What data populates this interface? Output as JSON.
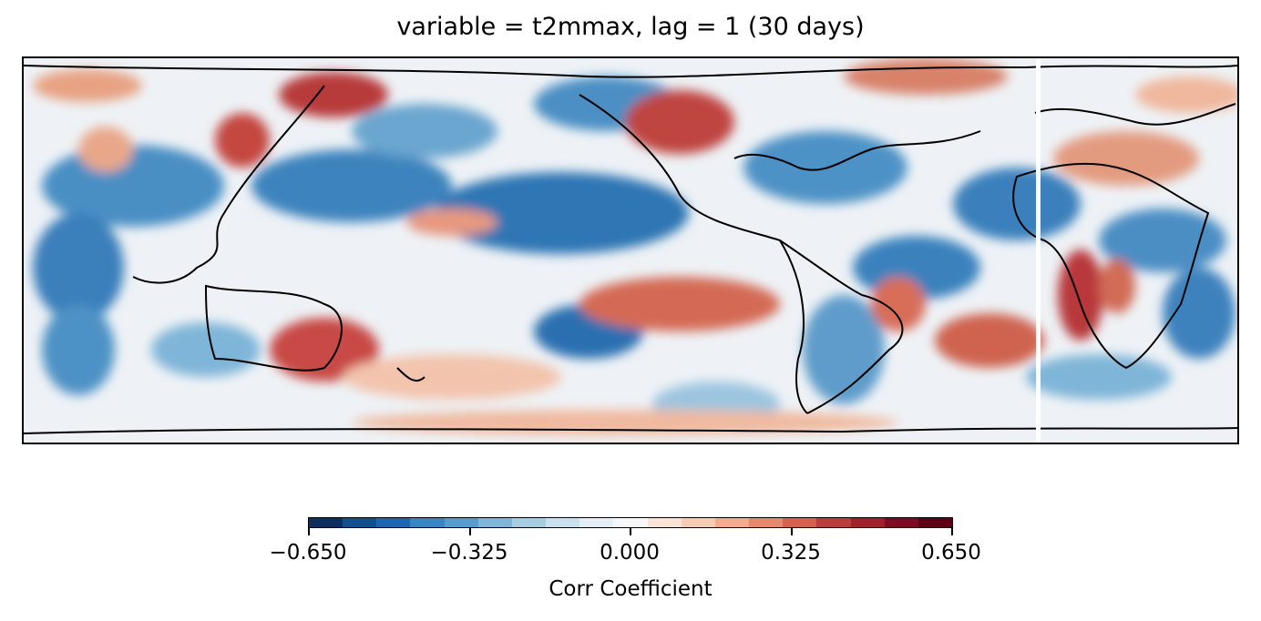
{
  "title": "variable = t2mmax, lag = 1 (30 days)",
  "colorbar": {
    "label": "Corr Coefficient",
    "ticks": [
      "−0.650",
      "−0.325",
      "0.000",
      "0.325",
      "0.650"
    ],
    "range": [
      -0.65,
      0.65
    ],
    "colors": [
      "#0d2f5c",
      "#154f8a",
      "#2166ac",
      "#3a85bd",
      "#5a9bc9",
      "#7fb5d8",
      "#a7cde3",
      "#c9e0ee",
      "#e3eef5",
      "#f7f7f7",
      "#fbe3d5",
      "#f8cbb3",
      "#f2ad8f",
      "#e38b6d",
      "#d36350",
      "#bb3c3b",
      "#a31e2d",
      "#7d0b22",
      "#5a0016"
    ]
  }
}
